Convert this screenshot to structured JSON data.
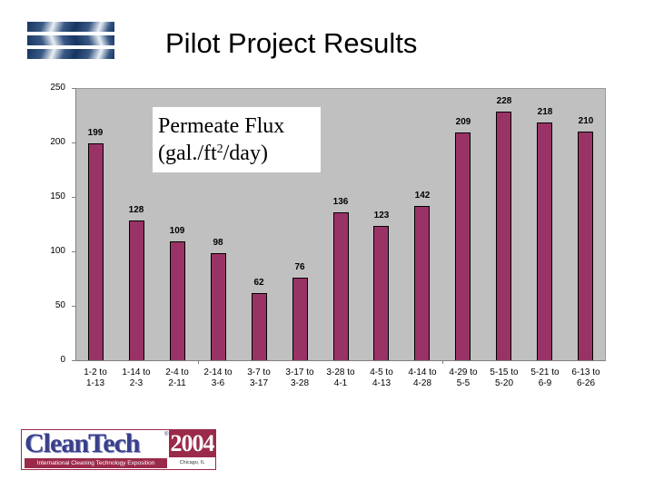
{
  "slide": {
    "title": "Pilot Project Results",
    "logo_top": {
      "icon": "striped-chevron-logo"
    },
    "logo_bottom": {
      "brand": "CleanTech",
      "registered_mark": "®",
      "year": "2004",
      "subtitle": "International Cleaning Technology Exposition",
      "location": "Chicago, IL"
    }
  },
  "legend": {
    "line1": "Permeate Flux",
    "line2_prefix": "(gal./ft",
    "line2_sup": "2",
    "line2_suffix": "/day)"
  },
  "colors": {
    "bar": "#993366",
    "plot_background": "#c0c0c0",
    "brand_maroon": "#9b2a4a",
    "brand_blue": "#3a3f8a"
  },
  "axis": {
    "y_ticks": [
      "250",
      "200",
      "150",
      "100",
      "50",
      "0"
    ]
  },
  "chart_data": {
    "type": "bar",
    "title": "Pilot Project Results",
    "xlabel": "",
    "ylabel": "Permeate Flux (gal./ft2/day)",
    "ylim": [
      0,
      250
    ],
    "y_ticks": [
      0,
      50,
      100,
      150,
      200,
      250
    ],
    "grid": false,
    "legend_position": "upper-left (inside plot)",
    "categories": [
      "1-2 to 1-13",
      "1-14 to 2-3",
      "2-4 to 2-11",
      "2-14 to 3-6",
      "3-7 to 3-17",
      "3-17 to 3-28",
      "3-28 to 4-1",
      "4-5 to 4-13",
      "4-14 to 4-28",
      "4-29 to 5-5",
      "5-15 to 5-20",
      "5-21 to 6-9",
      "6-13 to 6-26"
    ],
    "category_lines": [
      [
        "1-2 to",
        "1-13"
      ],
      [
        "1-14 to",
        "2-3"
      ],
      [
        "2-4 to",
        "2-11"
      ],
      [
        "2-14 to",
        "3-6"
      ],
      [
        "3-7 to",
        "3-17"
      ],
      [
        "3-17 to",
        "3-28"
      ],
      [
        "3-28 to",
        "4-1"
      ],
      [
        "4-5 to",
        "4-13"
      ],
      [
        "4-14 to",
        "4-28"
      ],
      [
        "4-29 to",
        "5-5"
      ],
      [
        "5-15 to",
        "5-20"
      ],
      [
        "5-21 to",
        "6-9"
      ],
      [
        "6-13 to",
        "6-26"
      ]
    ],
    "series": [
      {
        "name": "Permeate Flux (gal./ft2/day)",
        "values": [
          199,
          128,
          109,
          98,
          62,
          76,
          136,
          123,
          142,
          209,
          228,
          218,
          210
        ]
      }
    ],
    "values": [
      199,
      128,
      109,
      98,
      62,
      76,
      136,
      123,
      142,
      209,
      228,
      218,
      210
    ]
  }
}
